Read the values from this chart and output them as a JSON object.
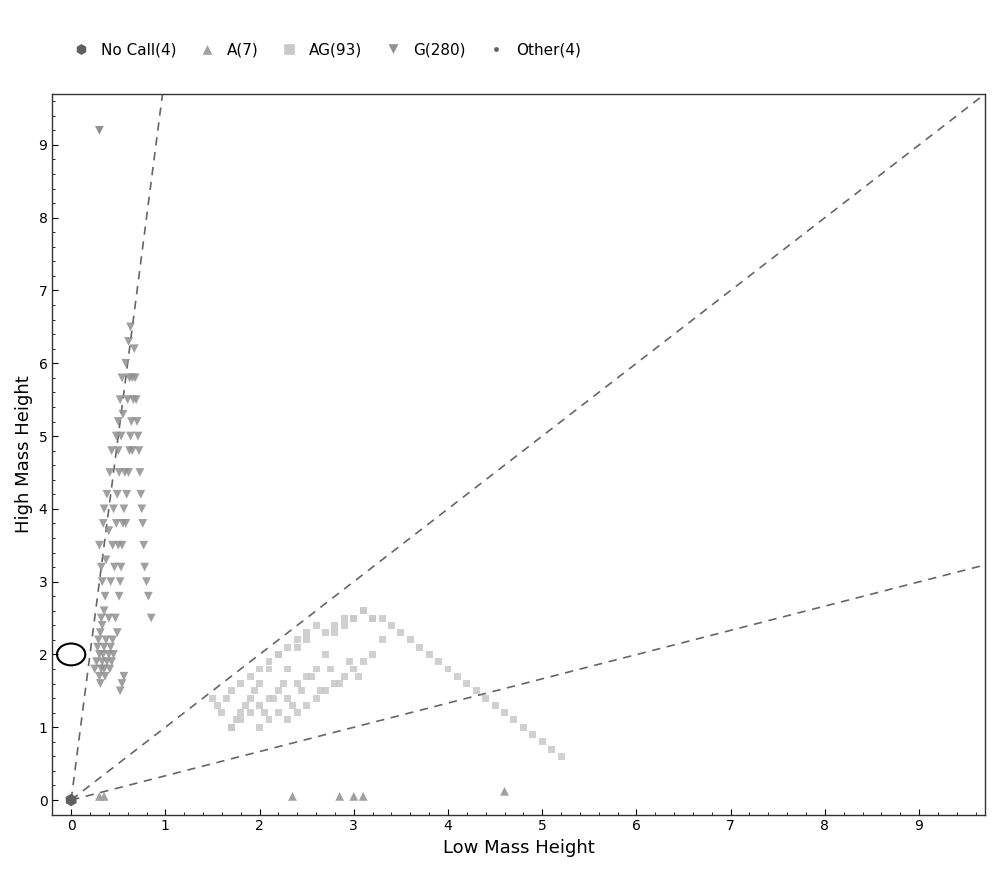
{
  "xlabel": "Low Mass Height",
  "ylabel": "High Mass Height",
  "xlim": [
    -0.2,
    9.7
  ],
  "ylim": [
    -0.2,
    9.7
  ],
  "xticks": [
    0,
    1,
    2,
    3,
    4,
    5,
    6,
    7,
    8,
    9
  ],
  "yticks": [
    0,
    1,
    2,
    3,
    4,
    5,
    6,
    7,
    8,
    9
  ],
  "background_color": "#ffffff",
  "axis_color": "#333333",
  "dashed_line_color": "#666666",
  "dashed_line_slopes": [
    10.0,
    1.0,
    0.333
  ],
  "marker_color_dark": "#808080",
  "marker_color_light": "#aaaaaa",
  "marker_color_square": "#c0c0c0",
  "no_call_x": [
    0.0
  ],
  "no_call_y": [
    0.0
  ],
  "A_x": [
    0.3,
    0.35,
    2.35,
    2.85,
    3.0,
    3.1,
    4.6
  ],
  "A_y": [
    0.05,
    0.05,
    0.05,
    0.05,
    0.05,
    0.05,
    0.12
  ],
  "G_x": [
    0.25,
    0.27,
    0.28,
    0.29,
    0.3,
    0.3,
    0.3,
    0.31,
    0.31,
    0.32,
    0.32,
    0.32,
    0.33,
    0.33,
    0.33,
    0.34,
    0.34,
    0.35,
    0.35,
    0.35,
    0.35,
    0.36,
    0.36,
    0.37,
    0.37,
    0.38,
    0.38,
    0.4,
    0.4,
    0.4,
    0.41,
    0.41,
    0.42,
    0.42,
    0.43,
    0.43,
    0.44,
    0.44,
    0.45,
    0.45,
    0.46,
    0.47,
    0.48,
    0.48,
    0.49,
    0.49,
    0.5,
    0.5,
    0.5,
    0.51,
    0.51,
    0.52,
    0.52,
    0.53,
    0.53,
    0.54,
    0.54,
    0.55,
    0.55,
    0.56,
    0.57,
    0.58,
    0.58,
    0.59,
    0.6,
    0.61,
    0.61,
    0.62,
    0.62,
    0.63,
    0.63,
    0.64,
    0.65,
    0.65,
    0.66,
    0.67,
    0.68,
    0.69,
    0.7,
    0.71,
    0.72,
    0.73,
    0.74,
    0.75,
    0.76,
    0.77,
    0.78,
    0.8,
    0.82,
    0.85,
    0.52,
    0.54,
    0.56
  ],
  "G_y": [
    1.8,
    1.9,
    2.1,
    2.2,
    1.7,
    2.0,
    3.5,
    1.6,
    2.3,
    1.8,
    2.5,
    3.2,
    1.9,
    2.4,
    3.0,
    2.0,
    3.8,
    1.8,
    2.1,
    2.6,
    4.0,
    1.7,
    2.8,
    2.2,
    3.3,
    1.9,
    4.2,
    2.0,
    2.5,
    3.7,
    1.8,
    4.5,
    2.1,
    3.0,
    1.9,
    4.8,
    2.2,
    3.5,
    2.0,
    4.0,
    3.2,
    2.5,
    3.8,
    5.0,
    2.3,
    4.2,
    3.5,
    4.8,
    5.2,
    2.8,
    4.5,
    3.0,
    5.5,
    3.2,
    5.0,
    3.5,
    5.8,
    3.8,
    5.3,
    4.0,
    4.5,
    3.8,
    6.0,
    4.2,
    5.5,
    4.5,
    6.3,
    4.8,
    5.8,
    5.0,
    6.5,
    5.2,
    4.8,
    5.8,
    5.5,
    6.2,
    5.8,
    5.5,
    5.2,
    5.0,
    4.8,
    4.5,
    4.2,
    4.0,
    3.8,
    3.5,
    3.2,
    3.0,
    2.8,
    2.5,
    1.5,
    1.6,
    1.7
  ],
  "AG_x": [
    1.5,
    1.6,
    1.7,
    1.7,
    1.8,
    1.8,
    1.9,
    1.9,
    2.0,
    2.0,
    2.0,
    2.1,
    2.1,
    2.1,
    2.2,
    2.2,
    2.2,
    2.3,
    2.3,
    2.3,
    2.4,
    2.4,
    2.4,
    2.5,
    2.5,
    2.5,
    2.6,
    2.6,
    2.7,
    2.7,
    2.8,
    2.8,
    2.9,
    2.9,
    3.0,
    3.0,
    3.1,
    3.1,
    3.2,
    3.2,
    3.3,
    1.55,
    1.65,
    1.75,
    1.85,
    1.95,
    2.05,
    2.15,
    2.25,
    2.35,
    2.45,
    2.55,
    2.65,
    2.75,
    2.85,
    2.95,
    3.05,
    1.7,
    1.8,
    1.9,
    2.0,
    2.1,
    2.2,
    2.3,
    2.4,
    2.5,
    2.6,
    2.7,
    2.8,
    2.9,
    3.0,
    3.1,
    3.2,
    3.3,
    3.4,
    3.5,
    3.6,
    3.7,
    3.8,
    3.9,
    4.0,
    4.1,
    4.2,
    4.3,
    4.4,
    4.5,
    4.6,
    4.7,
    4.8,
    4.9,
    5.0,
    5.1,
    5.2
  ],
  "AG_y": [
    1.4,
    1.2,
    1.0,
    1.5,
    1.1,
    1.6,
    1.2,
    1.7,
    1.0,
    1.3,
    1.8,
    1.1,
    1.4,
    1.9,
    1.2,
    1.5,
    2.0,
    1.1,
    1.4,
    1.8,
    1.2,
    1.6,
    2.1,
    1.3,
    1.7,
    2.2,
    1.4,
    1.8,
    1.5,
    2.0,
    1.6,
    2.3,
    1.7,
    2.4,
    1.8,
    2.5,
    1.9,
    2.6,
    2.0,
    2.5,
    2.2,
    1.3,
    1.4,
    1.1,
    1.3,
    1.5,
    1.2,
    1.4,
    1.6,
    1.3,
    1.5,
    1.7,
    1.5,
    1.8,
    1.6,
    1.9,
    1.7,
    1.0,
    1.2,
    1.4,
    1.6,
    1.8,
    2.0,
    2.1,
    2.2,
    2.3,
    2.4,
    2.3,
    2.4,
    2.5,
    2.5,
    2.6,
    2.5,
    2.5,
    2.4,
    2.3,
    2.2,
    2.1,
    2.0,
    1.9,
    1.8,
    1.7,
    1.6,
    1.5,
    1.4,
    1.3,
    1.2,
    1.1,
    1.0,
    0.9,
    0.8,
    0.7,
    0.6
  ],
  "G_outlier_x": [
    0.3
  ],
  "G_outlier_y": [
    9.2
  ],
  "other_x": [
    0.02
  ],
  "other_y": [
    0.02
  ],
  "figsize": [
    10.0,
    8.72
  ],
  "dpi": 100
}
